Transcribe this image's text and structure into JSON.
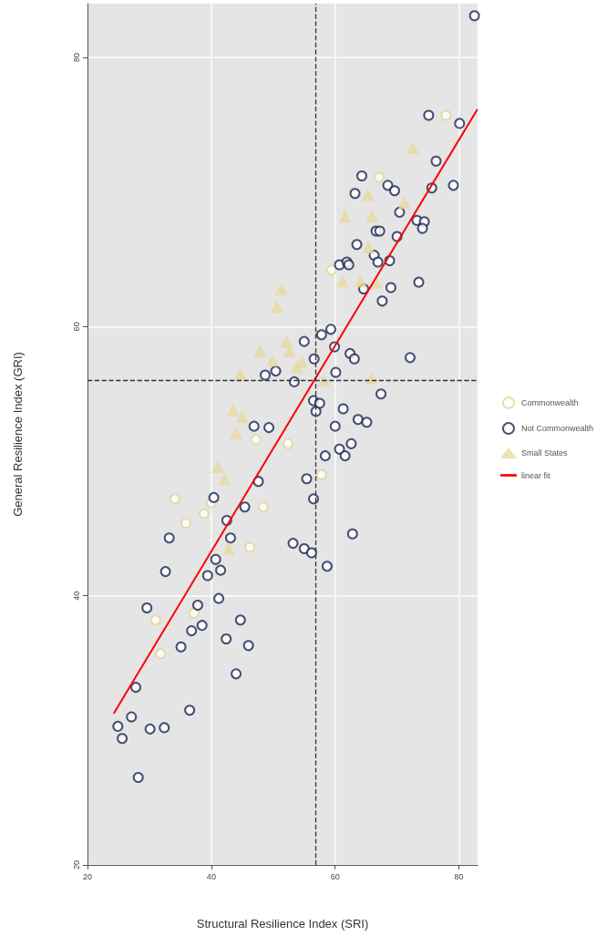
{
  "chart_data": {
    "type": "scatter",
    "xlabel": "Structural Resilience Index (SRI)",
    "ylabel": "General Resilience Index (GRI)",
    "xlim": [
      20,
      83
    ],
    "ylim": [
      20,
      84
    ],
    "xticks": [
      20,
      40,
      60,
      80
    ],
    "yticks": [
      20,
      40,
      60,
      80
    ],
    "grid": true,
    "legend": "right",
    "ref_lines": [
      {
        "axis": "x",
        "value": 56.9,
        "line_style": "dashed",
        "color": "#333333"
      },
      {
        "axis": "y",
        "value": 56.0,
        "line_style": "dashed",
        "color": "#333333"
      }
    ],
    "series": [
      {
        "name": "Commonwealth",
        "type": "scatter",
        "marker": "circle",
        "color": "#e3d498",
        "x": [
          77.9,
          67.1,
          59.4,
          47.2,
          52.4,
          57.8,
          34.1,
          40.0,
          38.8,
          35.9,
          48.4,
          46.2,
          31.0,
          37.2,
          31.8
        ],
        "values": [
          75.7,
          71.1,
          64.2,
          51.6,
          51.3,
          49.0,
          47.2,
          46.9,
          46.1,
          45.4,
          46.6,
          43.6,
          38.2,
          38.7,
          35.7
        ]
      },
      {
        "name": "Not Commonwealth",
        "type": "scatter",
        "marker": "circle",
        "color": "#1b2654",
        "x": [
          82.5,
          75.1,
          80.1,
          76.3,
          64.3,
          63.2,
          68.5,
          69.6,
          75.6,
          79.1,
          70.4,
          73.2,
          74.4,
          74.1,
          70.0,
          66.6,
          67.2,
          63.5,
          60.7,
          61.9,
          62.2,
          66.3,
          66.9,
          68.8,
          69.0,
          64.6,
          73.5,
          67.6,
          59.3,
          57.8,
          55.0,
          59.9,
          62.4,
          63.1,
          72.1,
          56.6,
          60.1,
          48.7,
          50.4,
          53.4,
          67.4,
          56.5,
          57.5,
          56.9,
          61.3,
          63.7,
          65.1,
          60.0,
          46.9,
          49.3,
          62.6,
          60.7,
          61.6,
          58.4,
          55.4,
          47.6,
          56.5,
          40.4,
          45.4,
          42.5,
          33.2,
          43.1,
          62.8,
          53.2,
          55.0,
          56.2,
          58.7,
          32.6,
          40.7,
          41.5,
          39.4,
          41.2,
          29.6,
          37.8,
          44.7,
          38.5,
          36.8,
          42.4,
          46.0,
          35.1,
          44.0,
          27.8,
          36.5,
          27.1,
          24.9,
          30.1,
          32.4,
          25.6,
          28.2
        ],
        "values": [
          83.1,
          75.7,
          75.1,
          72.3,
          71.2,
          69.9,
          70.5,
          70.1,
          70.3,
          70.5,
          68.5,
          67.9,
          67.8,
          67.3,
          66.7,
          67.1,
          67.1,
          66.1,
          64.6,
          64.8,
          64.6,
          65.3,
          64.8,
          64.9,
          62.9,
          62.8,
          63.3,
          61.9,
          59.8,
          59.4,
          58.9,
          58.5,
          58.0,
          57.6,
          57.7,
          57.6,
          56.6,
          56.4,
          56.7,
          55.9,
          55.0,
          54.5,
          54.3,
          53.7,
          53.9,
          53.1,
          52.9,
          52.6,
          52.6,
          52.5,
          51.3,
          50.9,
          50.4,
          50.4,
          48.7,
          48.5,
          47.2,
          47.3,
          46.6,
          45.6,
          44.3,
          44.3,
          44.6,
          43.9,
          43.5,
          43.2,
          42.2,
          41.8,
          42.7,
          41.9,
          41.5,
          39.8,
          39.1,
          39.3,
          38.2,
          37.8,
          37.4,
          36.8,
          36.3,
          36.2,
          34.2,
          33.2,
          31.5,
          31.0,
          30.3,
          30.1,
          30.2,
          29.4,
          26.5
        ]
      },
      {
        "name": "Small States",
        "type": "scatter",
        "marker": "triangle",
        "color": "#e6d9a0",
        "x": [
          72.5,
          65.3,
          71.2,
          61.6,
          66.0,
          65.4,
          61.2,
          64.1,
          66.6,
          51.3,
          50.6,
          52.1,
          47.9,
          52.6,
          49.9,
          54.6,
          53.8,
          44.7,
          58.2,
          65.9,
          43.5,
          45.0,
          44.0,
          41.0,
          42.1,
          42.8
        ],
        "values": [
          73.3,
          69.8,
          69.2,
          68.2,
          68.2,
          65.9,
          63.4,
          63.4,
          63.3,
          62.8,
          61.5,
          58.9,
          58.2,
          58.2,
          57.5,
          57.4,
          57.0,
          56.5,
          56.0,
          56.2,
          53.8,
          53.3,
          52.1,
          49.6,
          48.7,
          43.5
        ]
      },
      {
        "name": "linear fit",
        "type": "line",
        "marker": "none",
        "line_style": "solid",
        "color": "#ff0000",
        "x": [
          24.3,
          82.9
        ],
        "values": [
          31.3,
          76.1
        ]
      }
    ]
  }
}
